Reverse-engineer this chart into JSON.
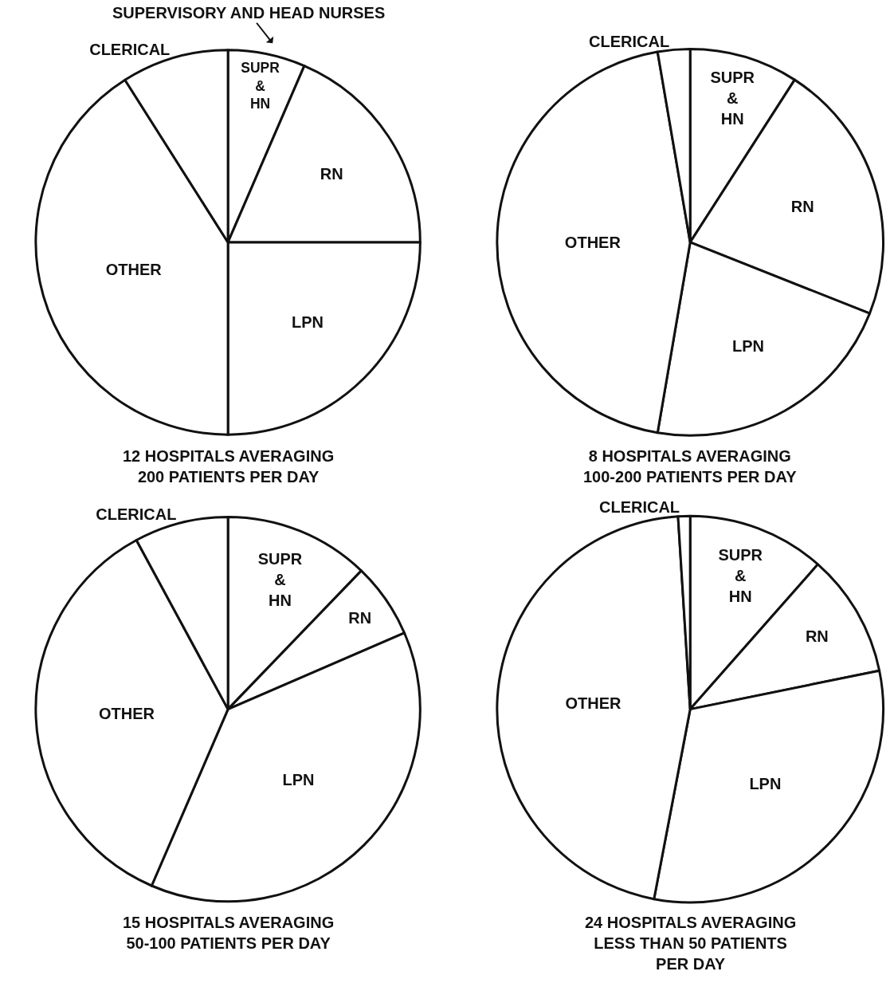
{
  "chart_data": [
    {
      "type": "pie",
      "title": "12 HOSPITALS AVERAGING\n200 PATIENTS PER DAY",
      "categories": [
        "SUPR & HN",
        "RN",
        "LPN",
        "OTHER",
        "CLERICAL"
      ],
      "values": [
        6.5,
        18.5,
        25,
        41,
        9
      ],
      "colors": [
        "#ffffff",
        "#ffffff",
        "#ffffff",
        "#ffffff",
        "#ffffff"
      ],
      "annotations": [
        "SUPERVISORY AND HEAD NURSES"
      ]
    },
    {
      "type": "pie",
      "title": "8 HOSPITALS AVERAGING\n100-200 PATIENTS PER DAY",
      "categories": [
        "SUPR & HN",
        "RN",
        "LPN",
        "OTHER",
        "CLERICAL"
      ],
      "values": [
        9.1,
        21.9,
        21.7,
        44.6,
        2.7
      ],
      "colors": [
        "#ffffff",
        "#ffffff",
        "#ffffff",
        "#ffffff",
        "#ffffff"
      ]
    },
    {
      "type": "pie",
      "title": "15 HOSPITALS AVERAGING\n50-100 PATIENTS PER DAY",
      "categories": [
        "SUPR & HN",
        "RN",
        "LPN",
        "OTHER",
        "CLERICAL"
      ],
      "values": [
        12.2,
        6.3,
        38,
        35.6,
        7.9
      ],
      "colors": [
        "#ffffff",
        "#ffffff",
        "#ffffff",
        "#ffffff",
        "#ffffff"
      ]
    },
    {
      "type": "pie",
      "title": "24 HOSPITALS AVERAGING\nLESS THAN 50 PATIENTS\nPER DAY",
      "categories": [
        "SUPR & HN",
        "RN",
        "LPN",
        "OTHER",
        "CLERICAL"
      ],
      "values": [
        11.5,
        10.3,
        31.2,
        46,
        1
      ],
      "colors": [
        "#ffffff",
        "#ffffff",
        "#ffffff",
        "#ffffff",
        "#ffffff"
      ]
    }
  ]
}
